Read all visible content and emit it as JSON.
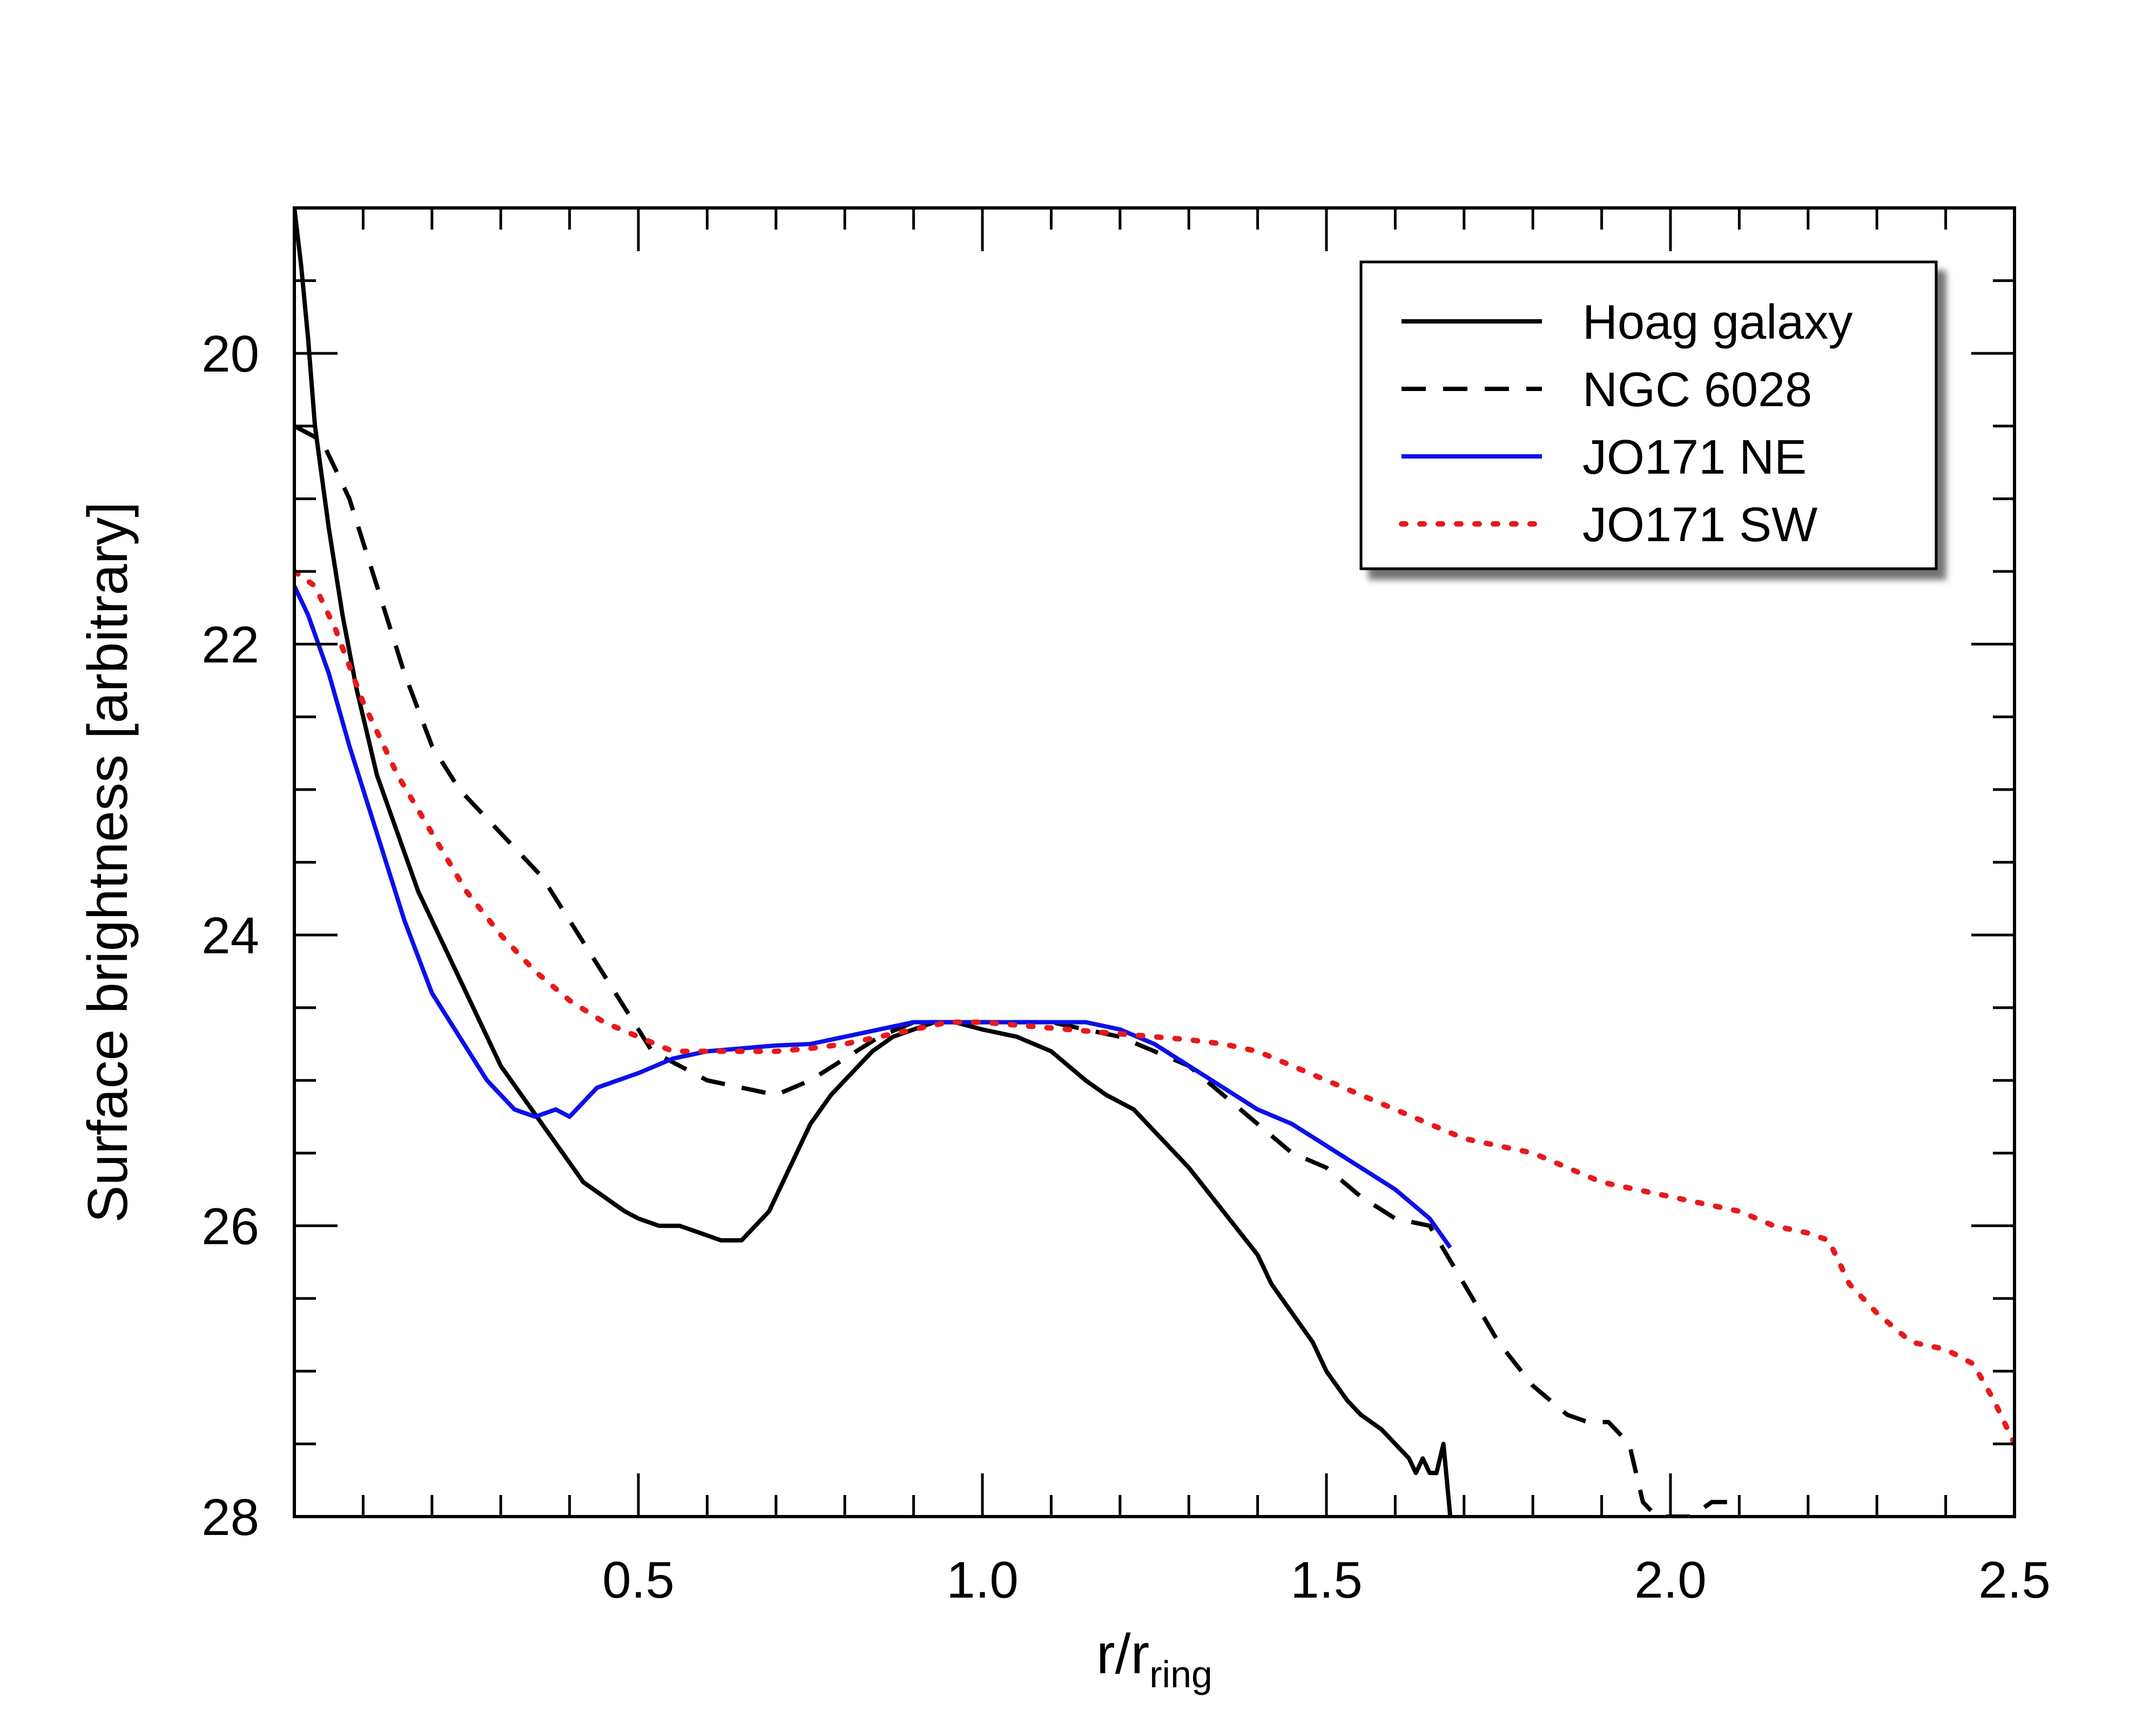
{
  "chart_data": {
    "type": "line",
    "xlabel": {
      "main": "r/r",
      "sub": "ring"
    },
    "ylabel": "Surface brightness [arbitrary]",
    "xlim": [
      0.0,
      2.5
    ],
    "ylim": [
      19.0,
      28.0
    ],
    "y_inverted": true,
    "grid": false,
    "legend_placement": "top-right",
    "x_ticks": [
      0.5,
      1.0,
      1.5,
      2.0,
      2.5
    ],
    "x_tick_labels": [
      "0.5",
      "1.0",
      "1.5",
      "2.0",
      "2.5"
    ],
    "y_ticks": [
      20,
      22,
      24,
      26,
      28
    ],
    "y_tick_labels": [
      "20",
      "22",
      "24",
      "26",
      "28"
    ],
    "series": [
      {
        "name": "Hoag galaxy",
        "color": "#000000",
        "style": "solid",
        "x": [
          0.0,
          0.01,
          0.02,
          0.03,
          0.05,
          0.07,
          0.09,
          0.12,
          0.15,
          0.18,
          0.21,
          0.24,
          0.27,
          0.3,
          0.33,
          0.36,
          0.39,
          0.42,
          0.45,
          0.48,
          0.5,
          0.53,
          0.56,
          0.59,
          0.62,
          0.65,
          0.67,
          0.69,
          0.71,
          0.73,
          0.75,
          0.78,
          0.81,
          0.84,
          0.87,
          0.9,
          0.93,
          0.96,
          1.0,
          1.05,
          1.1,
          1.15,
          1.18,
          1.22,
          1.26,
          1.3,
          1.35,
          1.4,
          1.42,
          1.45,
          1.48,
          1.5,
          1.53,
          1.55,
          1.58,
          1.6,
          1.62,
          1.63,
          1.64,
          1.65,
          1.66,
          1.67,
          1.68
        ],
        "y": [
          19.0,
          19.4,
          19.9,
          20.5,
          21.2,
          21.8,
          22.3,
          22.9,
          23.3,
          23.7,
          24.0,
          24.3,
          24.6,
          24.9,
          25.1,
          25.3,
          25.5,
          25.7,
          25.8,
          25.9,
          25.95,
          26.0,
          26.0,
          26.05,
          26.1,
          26.1,
          26.0,
          25.9,
          25.7,
          25.5,
          25.3,
          25.1,
          24.95,
          24.8,
          24.7,
          24.65,
          24.6,
          24.6,
          24.65,
          24.7,
          24.8,
          25.0,
          25.1,
          25.2,
          25.4,
          25.6,
          25.9,
          26.2,
          26.4,
          26.6,
          26.8,
          27.0,
          27.2,
          27.3,
          27.4,
          27.5,
          27.6,
          27.7,
          27.6,
          27.7,
          27.7,
          27.5,
          28.0
        ]
      },
      {
        "name": "NGC 6028",
        "color": "#000000",
        "style": "dashed",
        "x": [
          0.0,
          0.04,
          0.08,
          0.12,
          0.16,
          0.2,
          0.24,
          0.28,
          0.32,
          0.36,
          0.4,
          0.44,
          0.48,
          0.52,
          0.56,
          0.6,
          0.65,
          0.7,
          0.75,
          0.8,
          0.85,
          0.9,
          0.95,
          1.0,
          1.05,
          1.1,
          1.15,
          1.2,
          1.25,
          1.3,
          1.35,
          1.4,
          1.45,
          1.5,
          1.55,
          1.6,
          1.65,
          1.7,
          1.75,
          1.8,
          1.85,
          1.88,
          1.91,
          1.94,
          1.96,
          1.98,
          2.0,
          2.03,
          2.06,
          2.1
        ],
        "y": [
          20.5,
          20.6,
          21.0,
          21.6,
          22.2,
          22.7,
          23.0,
          23.2,
          23.4,
          23.6,
          23.9,
          24.2,
          24.5,
          24.8,
          24.9,
          25.0,
          25.05,
          25.1,
          25.0,
          24.85,
          24.7,
          24.6,
          24.6,
          24.6,
          24.6,
          24.6,
          24.65,
          24.7,
          24.8,
          24.9,
          25.1,
          25.3,
          25.5,
          25.6,
          25.8,
          25.95,
          26.0,
          26.4,
          26.8,
          27.1,
          27.3,
          27.35,
          27.35,
          27.5,
          27.9,
          28.0,
          28.0,
          28.0,
          27.9,
          27.9
        ]
      },
      {
        "name": "JO171 NE",
        "color": "#0b10e8",
        "style": "solid",
        "x": [
          0.0,
          0.02,
          0.05,
          0.08,
          0.12,
          0.16,
          0.2,
          0.24,
          0.28,
          0.32,
          0.35,
          0.38,
          0.4,
          0.42,
          0.44,
          0.47,
          0.5,
          0.55,
          0.6,
          0.65,
          0.7,
          0.75,
          0.8,
          0.85,
          0.9,
          0.95,
          1.0,
          1.05,
          1.1,
          1.15,
          1.2,
          1.25,
          1.3,
          1.35,
          1.4,
          1.45,
          1.5,
          1.55,
          1.6,
          1.65,
          1.68
        ],
        "y": [
          21.6,
          21.8,
          22.2,
          22.7,
          23.3,
          23.9,
          24.4,
          24.7,
          25.0,
          25.2,
          25.25,
          25.2,
          25.25,
          25.15,
          25.05,
          25.0,
          24.95,
          24.85,
          24.8,
          24.78,
          24.76,
          24.75,
          24.7,
          24.65,
          24.6,
          24.6,
          24.6,
          24.6,
          24.6,
          24.6,
          24.65,
          24.75,
          24.9,
          25.05,
          25.2,
          25.3,
          25.45,
          25.6,
          25.75,
          25.95,
          26.15
        ]
      },
      {
        "name": "JO171 SW",
        "color": "#e8191b",
        "style": "dotted",
        "x": [
          0.0,
          0.03,
          0.06,
          0.1,
          0.15,
          0.2,
          0.25,
          0.3,
          0.35,
          0.4,
          0.45,
          0.5,
          0.55,
          0.6,
          0.65,
          0.7,
          0.75,
          0.8,
          0.85,
          0.9,
          0.95,
          1.0,
          1.05,
          1.1,
          1.15,
          1.2,
          1.25,
          1.3,
          1.35,
          1.4,
          1.45,
          1.5,
          1.55,
          1.6,
          1.65,
          1.7,
          1.75,
          1.8,
          1.85,
          1.9,
          1.95,
          2.0,
          2.05,
          2.1,
          2.15,
          2.2,
          2.23,
          2.26,
          2.3,
          2.35,
          2.4,
          2.44,
          2.47,
          2.49,
          2.5
        ],
        "y": [
          21.5,
          21.6,
          21.9,
          22.4,
          22.9,
          23.3,
          23.7,
          24.0,
          24.25,
          24.45,
          24.6,
          24.7,
          24.8,
          24.8,
          24.8,
          24.8,
          24.78,
          24.75,
          24.7,
          24.65,
          24.6,
          24.6,
          24.62,
          24.64,
          24.66,
          24.68,
          24.7,
          24.72,
          24.75,
          24.8,
          24.9,
          25.0,
          25.1,
          25.2,
          25.3,
          25.4,
          25.45,
          25.5,
          25.6,
          25.7,
          25.75,
          25.8,
          25.85,
          25.9,
          26.0,
          26.05,
          26.1,
          26.4,
          26.6,
          26.8,
          26.85,
          26.95,
          27.2,
          27.4,
          27.5
        ]
      }
    ]
  }
}
